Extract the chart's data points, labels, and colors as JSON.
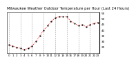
{
  "title": "Milwaukee Weather Outdoor Temperature per Hour (Last 24 Hours)",
  "hours": [
    0,
    1,
    2,
    3,
    4,
    5,
    6,
    7,
    8,
    9,
    10,
    11,
    12,
    13,
    14,
    15,
    16,
    17,
    18,
    19,
    20,
    21,
    22,
    23
  ],
  "temps": [
    27,
    26,
    25,
    24,
    23,
    24,
    26,
    30,
    35,
    40,
    44,
    48,
    51,
    52,
    52,
    52,
    48,
    46,
    44,
    45,
    43,
    45,
    46,
    47
  ],
  "line_color": "#ff0000",
  "marker_color": "#000000",
  "bg_color": "#ffffff",
  "grid_color": "#999999",
  "title_color": "#000000",
  "ylim": [
    20,
    56
  ],
  "ytick_values": [
    25,
    30,
    35,
    40,
    45,
    50,
    55
  ],
  "xtick_values": [
    0,
    1,
    2,
    3,
    4,
    5,
    6,
    7,
    8,
    9,
    10,
    11,
    12,
    13,
    14,
    15,
    16,
    17,
    18,
    19,
    20,
    21,
    22,
    23
  ],
  "title_fontsize": 3.8,
  "tick_fontsize": 3.0,
  "line_width": 0.7,
  "marker_size": 1.0
}
